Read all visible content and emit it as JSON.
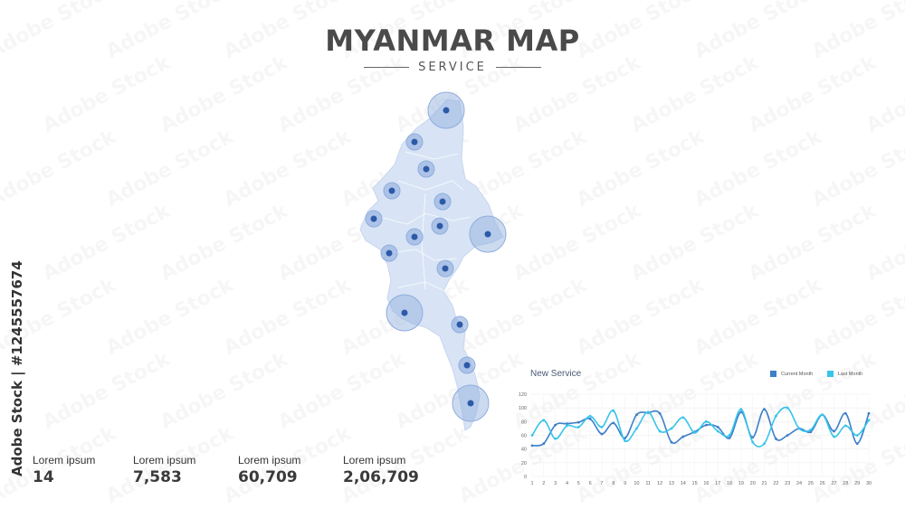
{
  "header": {
    "title": "MYANMAR MAP",
    "subtitle": "SERVICE"
  },
  "side_text": "Adobe Stock | #1245557674",
  "watermark": "Adobe Stock",
  "colors": {
    "map_fill": "#d8e4f5",
    "marker_dot": "#2d5aa8",
    "marker_halo": "#8fadde",
    "current_month": "#3d7fc9",
    "last_month": "#37c4ea"
  },
  "map": {
    "country": "Myanmar",
    "markers": [
      {
        "size": "large"
      },
      {
        "size": "small"
      },
      {
        "size": "small"
      },
      {
        "size": "small"
      },
      {
        "size": "small"
      },
      {
        "size": "small"
      },
      {
        "size": "small"
      },
      {
        "size": "large"
      },
      {
        "size": "small"
      },
      {
        "size": "small"
      },
      {
        "size": "small"
      },
      {
        "size": "large"
      },
      {
        "size": "small"
      },
      {
        "size": "small"
      },
      {
        "size": "large"
      }
    ]
  },
  "stats": [
    {
      "label": "Lorem ipsum",
      "value": "14"
    },
    {
      "label": "Lorem ipsum",
      "value": "7,583"
    },
    {
      "label": "Lorem ipsum",
      "value": "60,709"
    },
    {
      "label": "Lorem ipsum",
      "value": "2,06,709"
    }
  ],
  "chart_data": {
    "type": "line",
    "title": "New Service",
    "xlabel": "",
    "ylabel": "",
    "x": [
      1,
      2,
      3,
      4,
      5,
      6,
      7,
      8,
      9,
      10,
      11,
      12,
      13,
      14,
      15,
      16,
      17,
      18,
      19,
      20,
      21,
      22,
      23,
      24,
      25,
      26,
      27,
      28,
      29,
      30
    ],
    "yticks": [
      0,
      20,
      40,
      60,
      80,
      100,
      120
    ],
    "ylim": [
      0,
      120
    ],
    "grid": true,
    "legend_position": "top-right",
    "series": [
      {
        "name": "Current Month",
        "values": [
          45,
          48,
          75,
          77,
          79,
          84,
          62,
          78,
          56,
          90,
          93,
          92,
          50,
          58,
          65,
          75,
          72,
          56,
          94,
          57,
          98,
          55,
          60,
          70,
          65,
          90,
          66,
          92,
          48,
          92
        ]
      },
      {
        "name": "Last Month",
        "values": [
          60,
          82,
          55,
          74,
          72,
          88,
          72,
          96,
          52,
          70,
          94,
          66,
          70,
          86,
          64,
          80,
          66,
          60,
          98,
          50,
          48,
          88,
          100,
          70,
          68,
          90,
          58,
          74,
          60,
          82
        ]
      }
    ]
  }
}
